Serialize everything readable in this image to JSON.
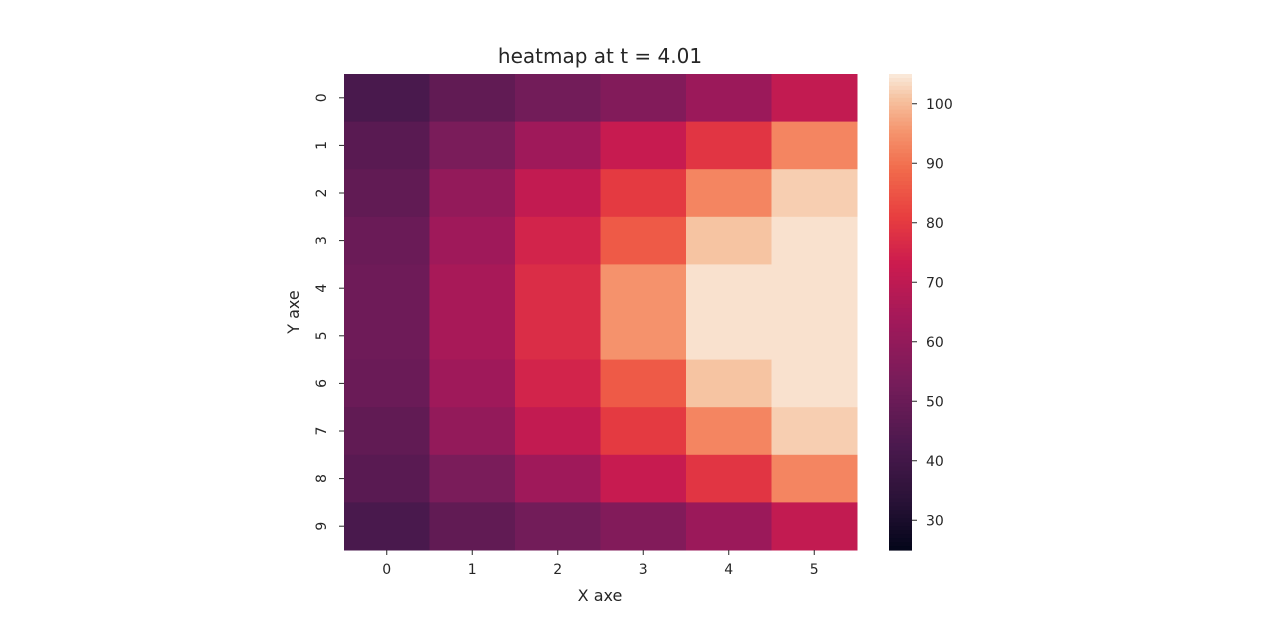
{
  "chart_data": {
    "type": "heatmap",
    "title": "heatmap at t = 4.01",
    "xlabel": "X axe",
    "ylabel": "Y axe",
    "x_categories": [
      "0",
      "1",
      "2",
      "3",
      "4",
      "5"
    ],
    "y_categories": [
      "0",
      "1",
      "2",
      "3",
      "4",
      "5",
      "6",
      "7",
      "8",
      "9"
    ],
    "values": [
      [
        42,
        48,
        52,
        56,
        62,
        71
      ],
      [
        46,
        54,
        63,
        72,
        79,
        93
      ],
      [
        48,
        60,
        71,
        80,
        93,
        102
      ],
      [
        50,
        63,
        75,
        86,
        101,
        104
      ],
      [
        51,
        65,
        77,
        95,
        104,
        104
      ],
      [
        51,
        65,
        77,
        95,
        104,
        104
      ],
      [
        50,
        63,
        75,
        86,
        101,
        104
      ],
      [
        48,
        60,
        71,
        80,
        93,
        102
      ],
      [
        46,
        54,
        63,
        72,
        79,
        93
      ],
      [
        42,
        48,
        52,
        56,
        62,
        71
      ]
    ],
    "colorbar": {
      "vmin": 25,
      "vmax": 105,
      "ticks": [
        30,
        40,
        50,
        60,
        70,
        80,
        90,
        100
      ],
      "colormap": "rocket"
    }
  }
}
